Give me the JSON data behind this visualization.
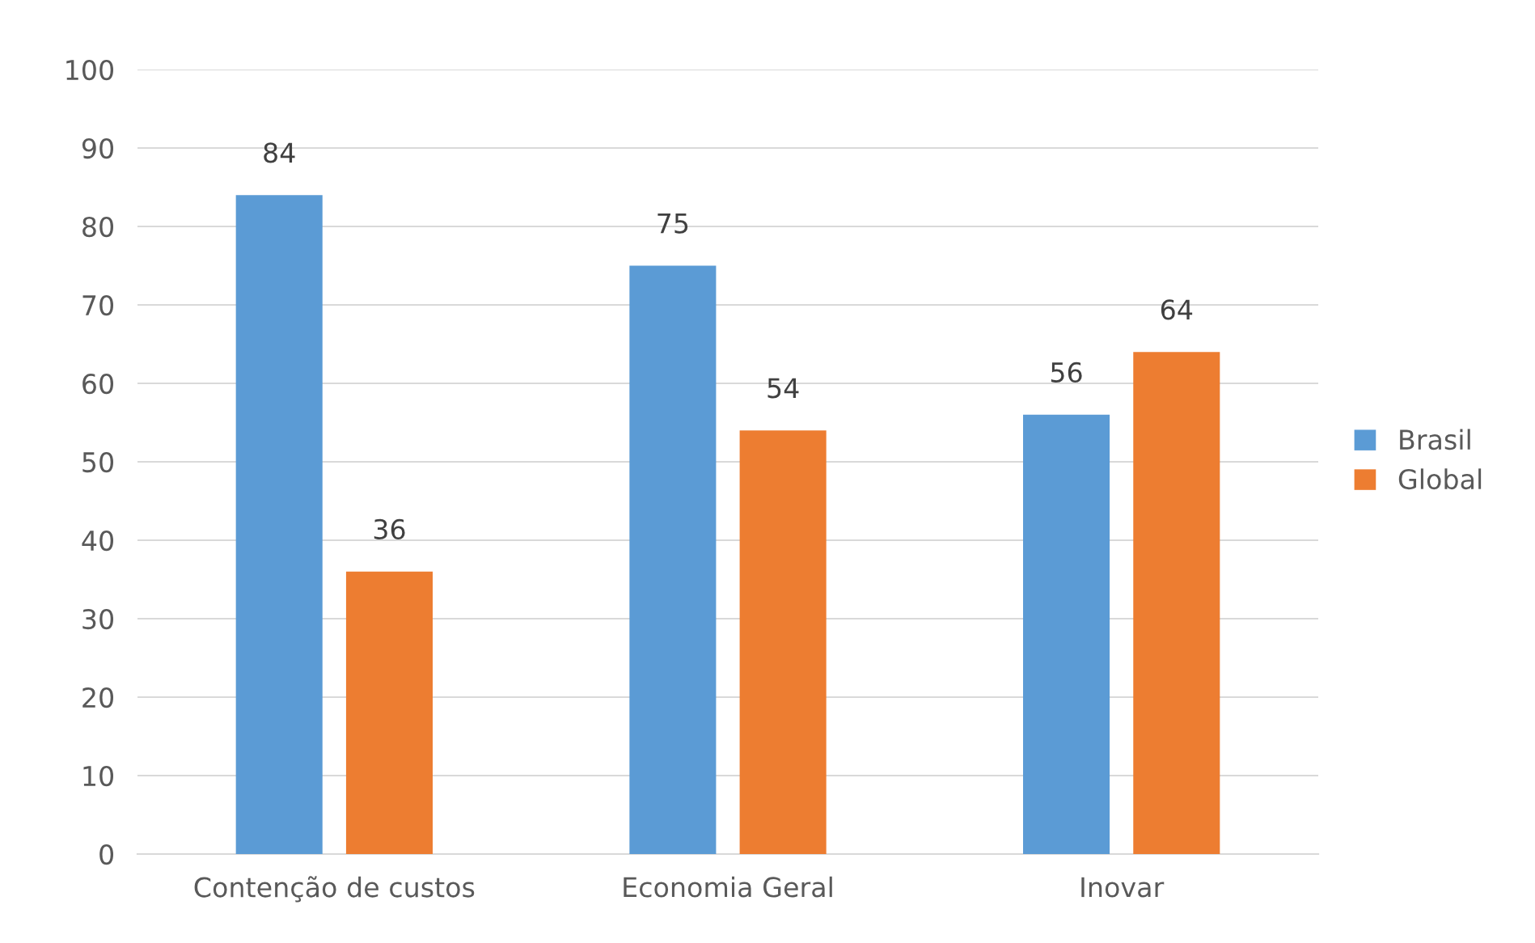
{
  "chart_data": {
    "type": "bar",
    "categories": [
      "Contenção de custos",
      "Economia Geral",
      "Inovar"
    ],
    "series": [
      {
        "name": "Brasil",
        "color": "#5b9bd5",
        "values": [
          84,
          75,
          56
        ]
      },
      {
        "name": "Global",
        "color": "#ed7d31",
        "values": [
          36,
          54,
          64
        ]
      }
    ],
    "ylim": [
      0,
      100
    ],
    "yticks": [
      0,
      10,
      20,
      30,
      40,
      50,
      60,
      70,
      80,
      90,
      100
    ],
    "grid": "y",
    "legend": "right",
    "data_labels": true
  }
}
